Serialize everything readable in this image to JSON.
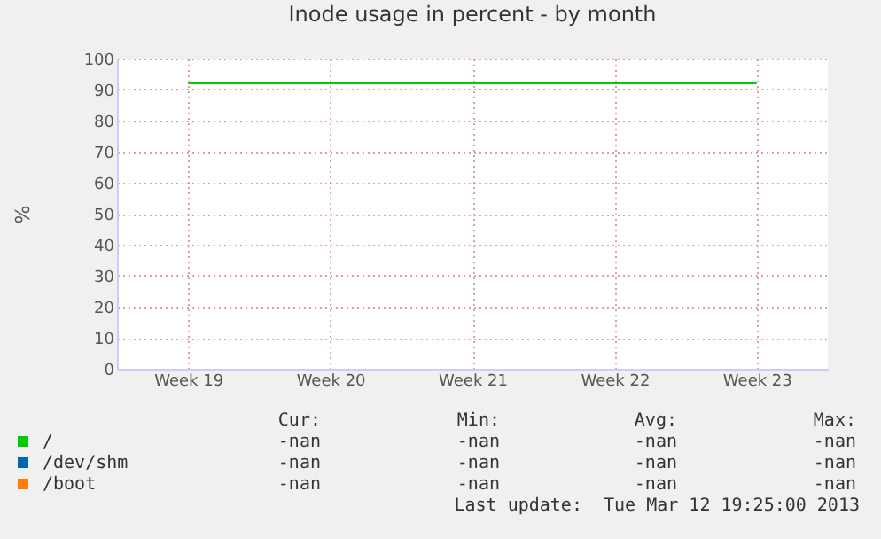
{
  "chart_data": {
    "type": "line",
    "title": "Inode usage in percent - by month",
    "ylabel": "%",
    "categories": [
      "Week 19",
      "Week 20",
      "Week 21",
      "Week 22",
      "Week 23"
    ],
    "ylim": [
      0,
      100
    ],
    "yticks": [
      0,
      10,
      20,
      30,
      40,
      50,
      60,
      70,
      80,
      90,
      100
    ],
    "series": [
      {
        "name": "/",
        "color": "#00cc00",
        "values": [
          92,
          92,
          92,
          92,
          92
        ]
      },
      {
        "name": "/dev/shm",
        "color": "#0066b3",
        "values": [
          null,
          null,
          null,
          null,
          null
        ]
      },
      {
        "name": "/boot",
        "color": "#ff8000",
        "values": [
          null,
          null,
          null,
          null,
          null
        ]
      }
    ],
    "grid": true,
    "legend": "bottom",
    "line_style": "solid",
    "marker": "none",
    "annotations": [
      "Cur:",
      "Min:",
      "Avg:",
      "Max:",
      "-nan",
      "-nan",
      "-nan",
      "-nan",
      "-nan",
      "-nan",
      "-nan",
      "-nan",
      "-nan",
      "-nan",
      "-nan",
      "-nan",
      "Last update:  Tue Mar 12 19:25:00 2013"
    ]
  }
}
